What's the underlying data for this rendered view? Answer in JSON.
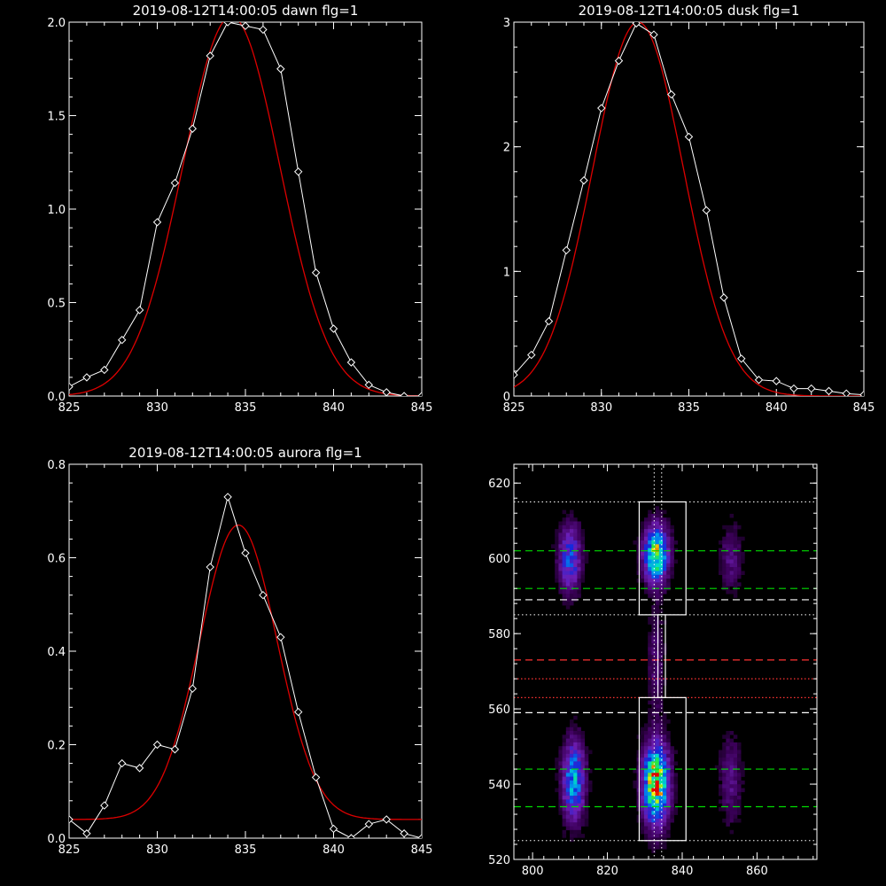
{
  "colors": {
    "data": "#ffffff",
    "fit": "#dd0000",
    "green_line": "#00dd00",
    "red_line": "#ff3333",
    "axis": "#ffffff"
  },
  "chart_data": [
    {
      "type": "line",
      "title": "2019-08-12T14:00:05 dawn flg=1",
      "xlim": [
        825,
        845
      ],
      "ylim": [
        0,
        2.0
      ],
      "xticks": [
        "825",
        "830",
        "835",
        "840",
        "845"
      ],
      "xtick_values": [
        825,
        830,
        835,
        840,
        845
      ],
      "yticks": [
        "0.0",
        "0.5",
        "1.0",
        "1.5",
        "2.0"
      ],
      "ytick_values": [
        0,
        0.5,
        1.0,
        1.5,
        2.0
      ],
      "series": [
        {
          "kind": "data",
          "x": [
            825,
            826,
            827,
            828,
            829,
            830,
            831,
            832,
            833,
            834,
            835,
            836,
            837,
            838,
            839,
            840,
            841,
            842,
            843,
            844,
            845
          ],
          "y": [
            0.05,
            0.1,
            0.14,
            0.3,
            0.46,
            0.93,
            1.14,
            1.43,
            1.82,
            2.0,
            1.98,
            1.96,
            1.75,
            1.2,
            0.66,
            0.36,
            0.18,
            0.06,
            0.02,
            0.0,
            0.0
          ]
        },
        {
          "kind": "fit",
          "gauss": {
            "amp": 2.03,
            "mu": 834.2,
            "sigma": 2.75,
            "base": 0.0
          }
        }
      ]
    },
    {
      "type": "line",
      "title": "2019-08-12T14:00:05 dusk flg=1",
      "xlim": [
        825,
        845
      ],
      "ylim": [
        0,
        3
      ],
      "xticks": [
        "825",
        "830",
        "835",
        "840",
        "845"
      ],
      "xtick_values": [
        825,
        830,
        835,
        840,
        845
      ],
      "yticks": [
        "0",
        "1",
        "2",
        "3"
      ],
      "ytick_values": [
        0,
        1,
        2,
        3
      ],
      "series": [
        {
          "kind": "data",
          "x": [
            825,
            826,
            827,
            828,
            829,
            830,
            831,
            832,
            833,
            834,
            835,
            836,
            837,
            838,
            839,
            840,
            841,
            842,
            843,
            844,
            845
          ],
          "y": [
            0.17,
            0.33,
            0.6,
            1.17,
            1.73,
            2.31,
            2.69,
            2.99,
            2.9,
            2.42,
            2.08,
            1.49,
            0.79,
            0.3,
            0.13,
            0.12,
            0.06,
            0.06,
            0.04,
            0.02,
            0.01
          ]
        },
        {
          "kind": "fit",
          "gauss": {
            "amp": 3.0,
            "mu": 832.1,
            "sigma": 2.6,
            "base": 0.0
          }
        }
      ]
    },
    {
      "type": "line",
      "title": "2019-08-12T14:00:05 aurora flg=1",
      "xlim": [
        825,
        845
      ],
      "ylim": [
        0,
        0.8
      ],
      "xticks": [
        "825",
        "830",
        "835",
        "840",
        "845"
      ],
      "xtick_values": [
        825,
        830,
        835,
        840,
        845
      ],
      "yticks": [
        "0.0",
        "0.2",
        "0.4",
        "0.6",
        "0.8"
      ],
      "ytick_values": [
        0,
        0.2,
        0.4,
        0.6,
        0.8
      ],
      "series": [
        {
          "kind": "data",
          "x": [
            825,
            826,
            827,
            828,
            829,
            830,
            831,
            832,
            833,
            834,
            835,
            836,
            837,
            838,
            839,
            840,
            841,
            842,
            843,
            844,
            845
          ],
          "y": [
            0.04,
            0.01,
            0.07,
            0.16,
            0.15,
            0.2,
            0.19,
            0.32,
            0.58,
            0.73,
            0.61,
            0.52,
            0.43,
            0.27,
            0.13,
            0.02,
            0.0,
            0.03,
            0.04,
            0.01,
            0.0
          ]
        },
        {
          "kind": "fit",
          "gauss": {
            "amp": 0.63,
            "mu": 834.6,
            "sigma": 2.2,
            "base": 0.04
          }
        }
      ]
    },
    {
      "type": "heatmap",
      "title": "",
      "xlim": [
        795,
        876
      ],
      "ylim": [
        520,
        625
      ],
      "xticks": [
        "800",
        "820",
        "840",
        "860"
      ],
      "xtick_values": [
        800,
        820,
        840,
        860
      ],
      "yticks": [
        "520",
        "540",
        "560",
        "580",
        "600",
        "620"
      ],
      "ytick_values": [
        520,
        540,
        560,
        580,
        600,
        620
      ],
      "blobs": [
        {
          "x": 810,
          "y": 600,
          "sx": 2.0,
          "sy": 6,
          "amp": 0.45
        },
        {
          "x": 811,
          "y": 541,
          "sx": 2.0,
          "sy": 7,
          "amp": 0.6
        },
        {
          "x": 833,
          "y": 601,
          "sx": 2.2,
          "sy": 5,
          "amp": 0.85
        },
        {
          "x": 833,
          "y": 540,
          "sx": 2.3,
          "sy": 7,
          "amp": 1.0
        },
        {
          "x": 833,
          "y": 572,
          "sx": 1.5,
          "sy": 10,
          "amp": 0.15
        },
        {
          "x": 853,
          "y": 600,
          "sx": 2.0,
          "sy": 6,
          "amp": 0.18
        },
        {
          "x": 853,
          "y": 541,
          "sx": 2.0,
          "sy": 8,
          "amp": 0.18
        }
      ],
      "boxes": [
        {
          "x0": 828.5,
          "x1": 841,
          "y0": 585,
          "y1": 615
        },
        {
          "x0": 828.5,
          "x1": 841,
          "y0": 525,
          "y1": 563
        },
        {
          "x0": 833.5,
          "x1": 835.5,
          "y0": 563,
          "y1": 585
        }
      ],
      "green_dashed_y": [
        602,
        592,
        544,
        534
      ],
      "white_dashed_y": [
        589,
        559
      ],
      "red_dashed_y": [
        573
      ],
      "red_dotted_y": [
        568,
        563
      ],
      "white_dotted_y": [
        615,
        585,
        525
      ],
      "white_dotted_x": [
        832.5,
        834.5
      ]
    }
  ]
}
